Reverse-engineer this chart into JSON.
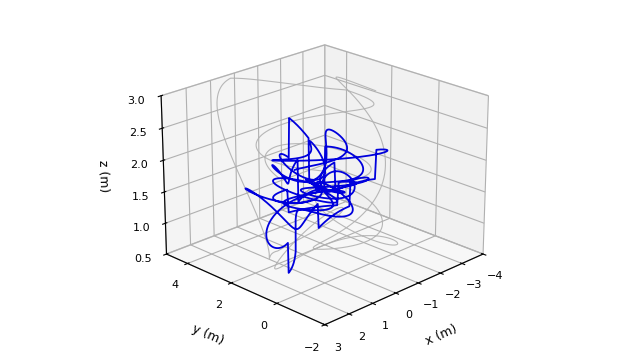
{
  "title": "",
  "xlabel": "x (m)",
  "ylabel": "y (m)",
  "zlabel": "z (m)",
  "xlim": [
    3,
    -4
  ],
  "ylim": [
    -2,
    5
  ],
  "zlim": [
    0.5,
    3
  ],
  "xticks": [
    3,
    2,
    1,
    0,
    -1,
    -2,
    -3,
    -4
  ],
  "yticks": [
    -2,
    0,
    2,
    4
  ],
  "zticks": [
    0.5,
    1,
    1.5,
    2,
    2.5,
    3
  ],
  "gray_color": "#b0b0b0",
  "blue_color": "#0000dd",
  "pane_color_side": "#e8e8e8",
  "pane_color_back": "#ebebeb",
  "figsize": [
    6.4,
    3.62
  ],
  "dpi": 100,
  "elev": 22,
  "azim": -135
}
